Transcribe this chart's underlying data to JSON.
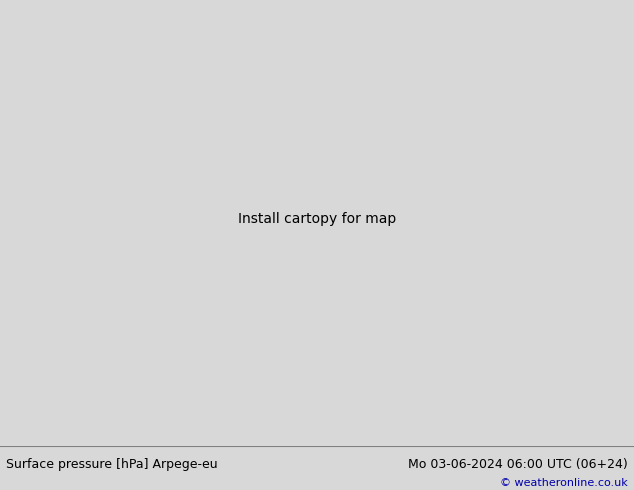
{
  "title_left": "Surface pressure [hPa] Arpege-eu",
  "title_right": "Mo 03-06-2024 06:00 UTC (06+24)",
  "copyright": "© weatheronline.co.uk",
  "bg_color": "#dcdce8",
  "land_color": "#c8f0b8",
  "border_color": "#808080",
  "sea_color": "#dcdce8",
  "blue_color": "#0000cc",
  "red_color": "#cc0000",
  "black_color": "#000000",
  "label_fontsize": 7,
  "title_fontsize": 9,
  "bottom_bar_color": "#d8d8d8",
  "xlim": [
    -13.5,
    12.5
  ],
  "ylim": [
    46.0,
    62.5
  ]
}
